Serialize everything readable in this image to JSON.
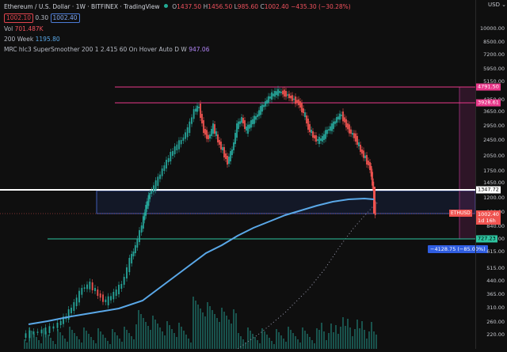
{
  "header": {
    "symbol_title": "Ethereum / U.S. Dollar · 1W · BITFINEX · TradingView",
    "open_label": "O",
    "open_value": "1437.50",
    "high_label": "H",
    "high_value": "1456.50",
    "low_label": "L",
    "low_value": "985.60",
    "close_label": "C",
    "close_value": "1002.40",
    "change_value": "−435.30 (−30.28%)",
    "bid_price": "1002.10",
    "spread": "0.30",
    "ask_price": "1002.40",
    "vol_label": "Vol",
    "vol_value": "701.487K",
    "ma_label": "200 Week",
    "ma_value": "1195.80",
    "mrc_label": "MRC hlc3 SuperSmoother 200 1 2.415 60 On Hover Auto D W",
    "mrc_value": "947.06",
    "currency_label": "USD"
  },
  "price_axis": {
    "ticks": [
      "10000.00",
      "8500.00",
      "7200.00",
      "5950.00",
      "5150.00",
      "4350.00",
      "3650.00",
      "2950.00",
      "2450.00",
      "2050.00",
      "1750.00",
      "1450.00",
      "1200.00",
      "980.00",
      "840.00",
      "720.00",
      "615.00",
      "515.00",
      "440.00",
      "365.00",
      "310.00",
      "260.00",
      "220.00"
    ],
    "levels": [
      {
        "name": "level-4791",
        "text": "4791.50",
        "color": "#e8388a",
        "bg": "#e8388a",
        "fg": "#ffffff"
      },
      {
        "name": "level-3928",
        "text": "3928.61",
        "color": "#e8388a",
        "bg": "#e8388a",
        "fg": "#ffffff"
      },
      {
        "name": "level-1347",
        "text": "1347.72",
        "color": "#ffffff",
        "bg": "#ffffff",
        "fg": "#000000"
      },
      {
        "name": "level-727",
        "text": "727.23",
        "color": "#2ec4a0",
        "bg": "#2ec4a0",
        "fg": "#000000"
      }
    ],
    "current_symbol": "ETHUSD",
    "current_price": "1002.40",
    "countdown": "1d 16h",
    "measure_label": "−4128.75 (−85.00%)"
  },
  "colors": {
    "bull": "#26a69a",
    "bear": "#ef5350",
    "ma": "#5aa8e8",
    "zone_border": "#3f5ab3"
  }
}
